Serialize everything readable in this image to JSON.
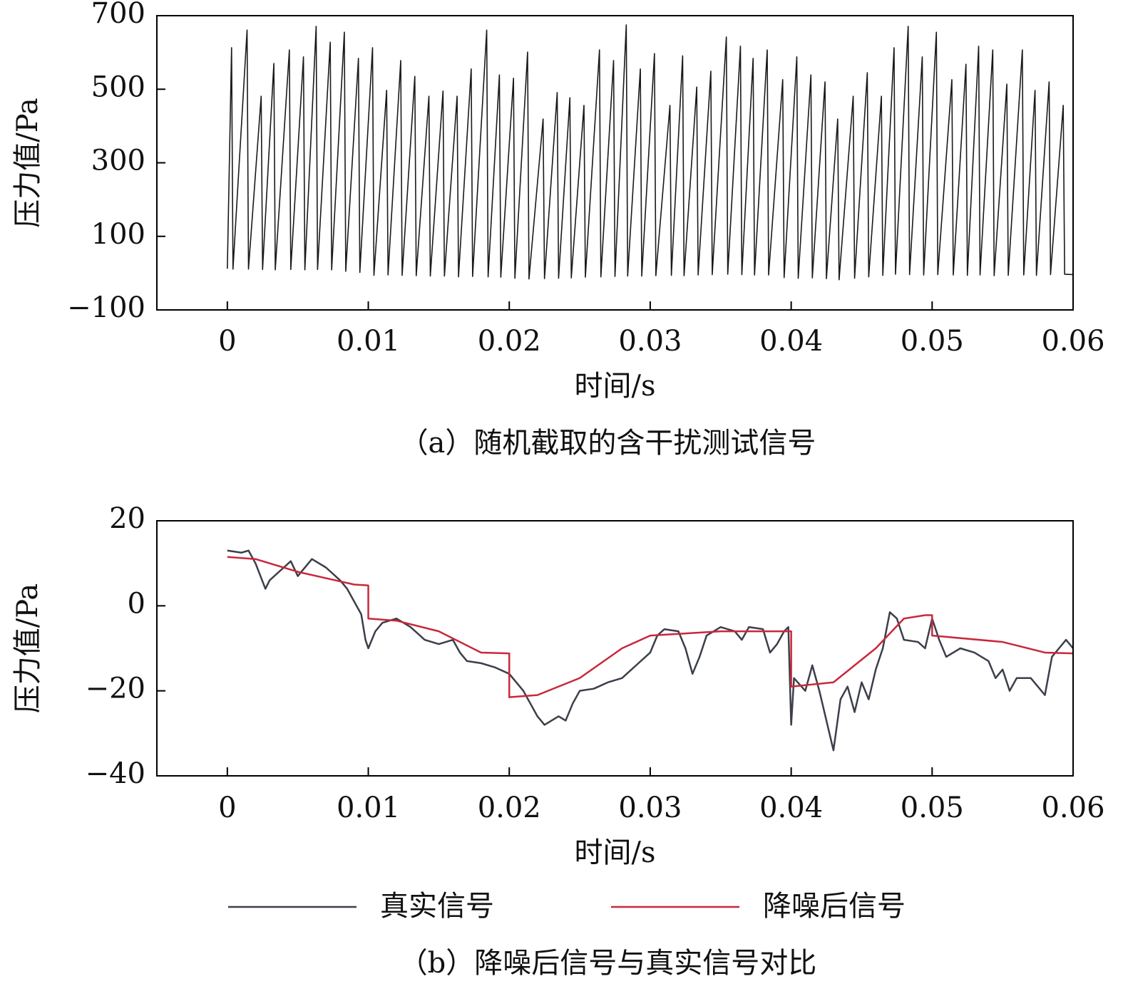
{
  "chart_data": [
    {
      "type": "line",
      "xlabel": "时间/s",
      "ylabel": "压力值/Pa",
      "caption": "（a）随机截取的含干扰测试信号",
      "color": "#1a1a1a",
      "xlim": [
        -0.005,
        0.06
      ],
      "xticks": [
        0,
        0.01,
        0.02,
        0.03,
        0.04,
        0.05,
        0.06
      ],
      "ylim": [
        -100,
        700
      ],
      "yticks": [
        {
          "value": -100,
          "label": "−100"
        },
        100,
        300,
        500,
        700
      ],
      "x": [
        0,
        0.0003,
        0.0004,
        0.0014,
        0.0015,
        0.0024,
        0.0025,
        0.0033,
        0.0034,
        0.0044,
        0.0045,
        0.0054,
        0.0055,
        0.0063,
        0.0064,
        0.0073,
        0.0074,
        0.0083,
        0.0084,
        0.0093,
        0.0094,
        0.0103,
        0.0104,
        0.0113,
        0.0114,
        0.0123,
        0.0124,
        0.0133,
        0.0134,
        0.0143,
        0.0144,
        0.0153,
        0.0154,
        0.0163,
        0.0164,
        0.0173,
        0.0174,
        0.0184,
        0.0185,
        0.0193,
        0.0194,
        0.0203,
        0.0204,
        0.0213,
        0.0214,
        0.0224,
        0.0225,
        0.0234,
        0.0235,
        0.0243,
        0.0244,
        0.0253,
        0.0254,
        0.0264,
        0.0265,
        0.0274,
        0.0275,
        0.0283,
        0.0284,
        0.0293,
        0.0294,
        0.0303,
        0.0304,
        0.0314,
        0.0315,
        0.0323,
        0.0324,
        0.0333,
        0.0334,
        0.0343,
        0.0344,
        0.0354,
        0.0355,
        0.0364,
        0.0365,
        0.0373,
        0.0374,
        0.0383,
        0.0384,
        0.0394,
        0.0395,
        0.0404,
        0.0405,
        0.0414,
        0.0415,
        0.0424,
        0.0425,
        0.0433,
        0.0434,
        0.0444,
        0.0445,
        0.0454,
        0.0455,
        0.0464,
        0.0465,
        0.0473,
        0.0474,
        0.0483,
        0.0484,
        0.0493,
        0.0494,
        0.0503,
        0.0504,
        0.0514,
        0.0515,
        0.0524,
        0.0525,
        0.0533,
        0.0534,
        0.0543,
        0.0544,
        0.0553,
        0.0554,
        0.0564,
        0.0565,
        0.0573,
        0.0574,
        0.0583,
        0.0584,
        0.0593,
        0.0594,
        0.06
      ],
      "values": [
        12,
        613,
        11,
        661,
        11,
        481,
        10,
        570,
        9,
        607,
        10,
        588,
        9,
        671,
        10,
        628,
        9,
        655,
        5,
        584,
        2,
        613,
        -6,
        497,
        -5,
        578,
        -6,
        535,
        -7,
        481,
        -8,
        495,
        -8,
        481,
        -10,
        555,
        -9,
        661,
        -10,
        539,
        -11,
        530,
        -14,
        601,
        -16,
        419,
        -15,
        491,
        -14,
        477,
        -13,
        456,
        -11,
        607,
        -10,
        578,
        -9,
        675,
        -8,
        555,
        -8,
        597,
        -7,
        456,
        -6,
        591,
        -7,
        506,
        -5,
        549,
        -4,
        642,
        -3,
        617,
        -4,
        584,
        -5,
        607,
        -5,
        526,
        -12,
        588,
        -14,
        539,
        -13,
        520,
        -15,
        419,
        -18,
        481,
        -14,
        545,
        -10,
        481,
        -6,
        613,
        -3,
        671,
        -4,
        588,
        -5,
        655,
        -4,
        526,
        -5,
        568,
        -6,
        617,
        -5,
        607,
        -7,
        514,
        -6,
        607,
        -5,
        497,
        -6,
        520,
        -4,
        456,
        -3,
        -4
      ]
    },
    {
      "type": "line",
      "xlabel": "时间/s",
      "ylabel": "压力值/Pa",
      "caption": "（b）降噪后信号与真实信号对比",
      "legend": "bottom",
      "xlim": [
        -0.005,
        0.06
      ],
      "xticks": [
        0,
        0.01,
        0.02,
        0.03,
        0.04,
        0.05,
        0.06
      ],
      "ylim": [
        -40,
        20
      ],
      "yticks": [
        {
          "value": -40,
          "label": "−40"
        },
        {
          "value": -20,
          "label": "−20"
        },
        0,
        20
      ],
      "series": [
        {
          "name": "真实信号",
          "color": "#3c3f4a",
          "x": [
            0,
            0.001,
            0.0015,
            0.002,
            0.0027,
            0.003,
            0.004,
            0.0045,
            0.005,
            0.006,
            0.007,
            0.008,
            0.0085,
            0.009,
            0.0095,
            0.0098,
            0.01,
            0.0105,
            0.011,
            0.012,
            0.013,
            0.014,
            0.015,
            0.016,
            0.0165,
            0.017,
            0.018,
            0.019,
            0.02,
            0.021,
            0.022,
            0.0225,
            0.0235,
            0.024,
            0.0245,
            0.025,
            0.026,
            0.027,
            0.028,
            0.029,
            0.03,
            0.0305,
            0.031,
            0.032,
            0.0325,
            0.033,
            0.0335,
            0.034,
            0.035,
            0.036,
            0.0365,
            0.037,
            0.038,
            0.0385,
            0.039,
            0.0395,
            0.0398,
            0.04,
            0.0402,
            0.041,
            0.0415,
            0.042,
            0.0425,
            0.043,
            0.0435,
            0.044,
            0.0445,
            0.045,
            0.0455,
            0.046,
            0.0465,
            0.047,
            0.0475,
            0.048,
            0.049,
            0.0495,
            0.05,
            0.0505,
            0.051,
            0.052,
            0.053,
            0.054,
            0.0545,
            0.055,
            0.0555,
            0.056,
            0.057,
            0.0575,
            0.058,
            0.0585,
            0.059,
            0.0595,
            0.06
          ],
          "values": [
            13,
            12.5,
            13,
            10,
            4,
            6,
            9,
            10.5,
            7,
            11,
            9,
            6,
            4,
            1,
            -2,
            -8,
            -10,
            -6,
            -4,
            -3,
            -5,
            -8,
            -9,
            -8,
            -11,
            -13,
            -13.5,
            -14.5,
            -16,
            -20,
            -26,
            -28,
            -26,
            -27,
            -23,
            -20,
            -19.5,
            -18,
            -17,
            -14,
            -11,
            -7,
            -5.5,
            -6,
            -10,
            -16,
            -12,
            -7,
            -5,
            -6,
            -8,
            -5,
            -5.5,
            -11,
            -9,
            -6,
            -5,
            -28,
            -17,
            -20,
            -14,
            -20,
            -27,
            -34,
            -22,
            -19,
            -25,
            -18,
            -22,
            -15,
            -10,
            -1.5,
            -3,
            -8,
            -8.5,
            -10,
            -3,
            -8,
            -12,
            -10,
            -11,
            -13,
            -17,
            -15,
            -20,
            -17,
            -17,
            -19,
            -21,
            -12,
            -10,
            -8,
            -10
          ]
        },
        {
          "name": "降噪后信号",
          "color": "#c8283c",
          "x": [
            0,
            0.002,
            0.005,
            0.007,
            0.009,
            0.01,
            0.01,
            0.012,
            0.015,
            0.018,
            0.02,
            0.02,
            0.022,
            0.025,
            0.028,
            0.03,
            0.035,
            0.04,
            0.04,
            0.043,
            0.046,
            0.048,
            0.0495,
            0.05,
            0.05,
            0.055,
            0.058,
            0.06
          ],
          "values": [
            11.5,
            11,
            8,
            6.5,
            5,
            4.8,
            -3,
            -3.5,
            -6,
            -11,
            -11.2,
            -21.5,
            -21,
            -17,
            -10,
            -7,
            -6,
            -6,
            -19,
            -18,
            -10,
            -3,
            -2.2,
            -2.2,
            -7,
            -8.5,
            -11,
            -11.2
          ]
        }
      ]
    }
  ]
}
